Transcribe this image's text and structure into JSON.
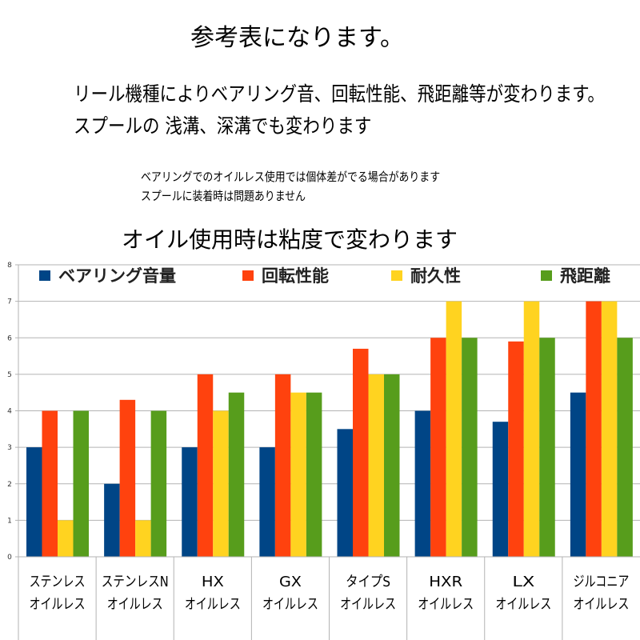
{
  "header": {
    "title": "参考表になります。",
    "line1": "リール機種によりベアリング音、回転性能、飛距離等が変わります。",
    "line2": "スプールの 浅溝、深溝でも変わります",
    "note1": "ベアリングでのオイルレス使用では個体差がでる場合があります",
    "note2": "スプールに装着時は問題ありません",
    "heading": "オイル使用時は粘度で変わります"
  },
  "chart_data": {
    "type": "bar",
    "categories": [
      [
        "ステンレス",
        "オイルレス"
      ],
      [
        "ステンレスN",
        "オイルレス"
      ],
      [
        "HX",
        "オイルレス"
      ],
      [
        "GX",
        "オイルレス"
      ],
      [
        "タイプS",
        "オイルレス"
      ],
      [
        "HXR",
        "オイルレス"
      ],
      [
        "LX",
        "オイルレス"
      ],
      [
        "ジルコニア",
        "オイルレス"
      ]
    ],
    "series": [
      {
        "name": "ベアリング音量",
        "color": "#004586",
        "values": [
          3,
          2,
          3,
          3,
          3.5,
          4,
          3.7,
          4.5
        ]
      },
      {
        "name": "回転性能",
        "color": "#ff420e",
        "values": [
          4,
          4.3,
          5,
          5,
          5.7,
          6,
          5.9,
          7
        ]
      },
      {
        "name": "耐久性",
        "color": "#ffd320",
        "values": [
          1,
          1,
          4,
          4.5,
          5,
          7,
          7,
          7
        ]
      },
      {
        "name": "飛距離",
        "color": "#579d1c",
        "values": [
          4,
          4,
          4.5,
          4.5,
          5,
          6,
          6,
          6
        ]
      }
    ],
    "ylim": [
      0,
      8
    ],
    "yticks": [
      "0",
      "1",
      "2",
      "3",
      "4",
      "5",
      "6",
      "7",
      "8"
    ],
    "grid": true,
    "legend": "top"
  }
}
